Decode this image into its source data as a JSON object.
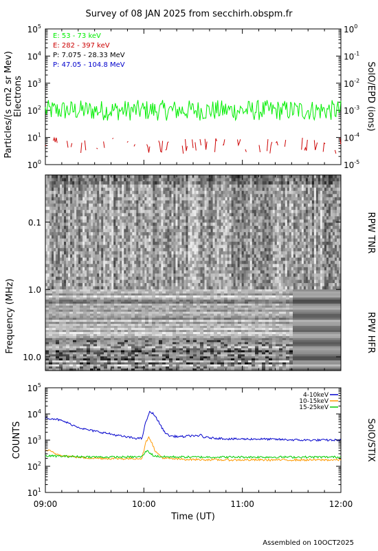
{
  "title": "Survey of 08 JAN 2025 from secchirh.obspm.fr",
  "footer": "Assembled on 10OCT2025",
  "colors": {
    "electron_low": "#00ee00",
    "electron_high": "#cc0000",
    "proton_low": "#000000",
    "proton_high": "#0000cc",
    "stix_4_10": "#0000cc",
    "stix_10_15": "#ff9900",
    "stix_15_25": "#00cc00"
  },
  "chart_data": [
    {
      "id": "epd",
      "type": "line",
      "ylabel_left": "Particles/(s cm2 sr Mev)",
      "ylabel_left2": "Electrons",
      "ylabel_right": "SolO/EPD (ions)",
      "y_scale": "log",
      "ylim": [
        1,
        100000
      ],
      "yticks_left": [
        {
          "base": "10",
          "exp": "0"
        },
        {
          "base": "10",
          "exp": "1"
        },
        {
          "base": "10",
          "exp": "2"
        },
        {
          "base": "10",
          "exp": "3"
        },
        {
          "base": "10",
          "exp": "4"
        },
        {
          "base": "10",
          "exp": "5"
        }
      ],
      "yticks_right": [
        {
          "base": "10",
          "exp": "-5"
        },
        {
          "base": "10",
          "exp": "-4"
        },
        {
          "base": "10",
          "exp": "-3"
        },
        {
          "base": "10",
          "exp": "-2"
        },
        {
          "base": "10",
          "exp": "-1"
        },
        {
          "base": "10",
          "exp": "0"
        }
      ],
      "legend": [
        {
          "label": "E: 53 - 73 keV",
          "color_key": "electron_low"
        },
        {
          "label": "E: 282 - 397 keV",
          "color_key": "electron_high"
        },
        {
          "label": "P: 7.075 - 28.33 MeV",
          "color_key": "proton_low"
        },
        {
          "label": "P: 47.05 - 104.8 MeV",
          "color_key": "proton_high"
        }
      ],
      "series": [
        {
          "name": "E: 53 - 73 keV",
          "color_key": "electron_low",
          "level": 100,
          "spread": 2.4,
          "axis": "left"
        },
        {
          "name": "E: 282 - 397 keV",
          "color_key": "electron_high",
          "level": 5,
          "spread": 2.0,
          "axis": "left",
          "intermittent": true
        }
      ]
    },
    {
      "id": "rpw",
      "type": "heatmap",
      "ylabel": "Frequency (MHz)",
      "y_scale": "log",
      "ylim": [
        0.02,
        16
      ],
      "yticks": [
        "0.1",
        "1.0",
        "10.0"
      ],
      "yticks_values": [
        0.1,
        1.0,
        10.0
      ],
      "right_labels": [
        "RPW TNR",
        "RPW HFR"
      ],
      "tnr_range": [
        0.02,
        1.0
      ],
      "hfr_range": [
        1.0,
        16
      ],
      "events": [
        {
          "start": "09:16",
          "end": "09:24",
          "fmin": 0.02,
          "fmax": 10.0
        },
        {
          "start": "09:23",
          "end": "09:28",
          "fmin": 0.05,
          "fmax": 0.8
        },
        {
          "start": "11:50",
          "end": "11:58",
          "fmin": 0.03,
          "fmax": 0.7
        }
      ],
      "hfr_data_gap_after": "11:29"
    },
    {
      "id": "stix",
      "type": "line",
      "ylabel": "COUNTS",
      "ylabel_right": "SolO/STIX",
      "y_scale": "log",
      "ylim": [
        10,
        100000
      ],
      "yticks_left": [
        {
          "base": "10",
          "exp": "1"
        },
        {
          "base": "10",
          "exp": "2"
        },
        {
          "base": "10",
          "exp": "3"
        },
        {
          "base": "10",
          "exp": "4"
        },
        {
          "base": "10",
          "exp": "5"
        }
      ],
      "x_axis": {
        "label": "Time (UT)",
        "ticks": [
          "09:00",
          "10:00",
          "11:00",
          "12:00"
        ],
        "range_hours": [
          9,
          12
        ]
      },
      "series": [
        {
          "name": "4-10keV",
          "color_key": "stix_4_10",
          "points": [
            [
              9.0,
              7000
            ],
            [
              9.1,
              6500
            ],
            [
              9.2,
              5000
            ],
            [
              9.3,
              3500
            ],
            [
              9.4,
              2600
            ],
            [
              9.5,
              2200
            ],
            [
              9.6,
              1900
            ],
            [
              9.7,
              1600
            ],
            [
              9.8,
              1350
            ],
            [
              9.9,
              1200
            ],
            [
              9.98,
              1150
            ],
            [
              10.02,
              5000
            ],
            [
              10.06,
              12000
            ],
            [
              10.1,
              10000
            ],
            [
              10.15,
              5000
            ],
            [
              10.2,
              2300
            ],
            [
              10.25,
              1500
            ],
            [
              10.3,
              1400
            ],
            [
              10.4,
              1350
            ],
            [
              10.5,
              1500
            ],
            [
              10.55,
              1350
            ],
            [
              10.58,
              1700
            ],
            [
              10.6,
              1300
            ],
            [
              10.7,
              1200
            ],
            [
              10.8,
              1150
            ],
            [
              10.9,
              1100
            ],
            [
              11.0,
              1100
            ],
            [
              11.2,
              1100
            ],
            [
              11.4,
              1050
            ],
            [
              11.6,
              1000
            ],
            [
              11.8,
              1000
            ],
            [
              12.0,
              1000
            ]
          ]
        },
        {
          "name": "10-15keV",
          "color_key": "stix_10_15",
          "points": [
            [
              9.0,
              420
            ],
            [
              9.05,
              380
            ],
            [
              9.1,
              300
            ],
            [
              9.2,
              250
            ],
            [
              9.4,
              210
            ],
            [
              9.6,
              200
            ],
            [
              9.8,
              195
            ],
            [
              9.98,
              200
            ],
            [
              10.02,
              800
            ],
            [
              10.05,
              1400
            ],
            [
              10.08,
              800
            ],
            [
              10.12,
              350
            ],
            [
              10.2,
              200
            ],
            [
              10.4,
              185
            ],
            [
              10.6,
              180
            ],
            [
              10.8,
              175
            ],
            [
              11.0,
              175
            ],
            [
              11.4,
              175
            ],
            [
              11.8,
              175
            ],
            [
              12.0,
              175
            ]
          ]
        },
        {
          "name": "15-25keV",
          "color_key": "stix_15_25",
          "points": [
            [
              9.0,
              250
            ],
            [
              9.2,
              240
            ],
            [
              9.4,
              230
            ],
            [
              9.6,
              225
            ],
            [
              9.8,
              225
            ],
            [
              9.98,
              230
            ],
            [
              10.03,
              400
            ],
            [
              10.06,
              330
            ],
            [
              10.1,
              250
            ],
            [
              10.2,
              230
            ],
            [
              10.5,
              225
            ],
            [
              10.8,
              225
            ],
            [
              11.0,
              225
            ],
            [
              11.4,
              225
            ],
            [
              11.8,
              225
            ],
            [
              12.0,
              225
            ]
          ]
        }
      ]
    }
  ]
}
